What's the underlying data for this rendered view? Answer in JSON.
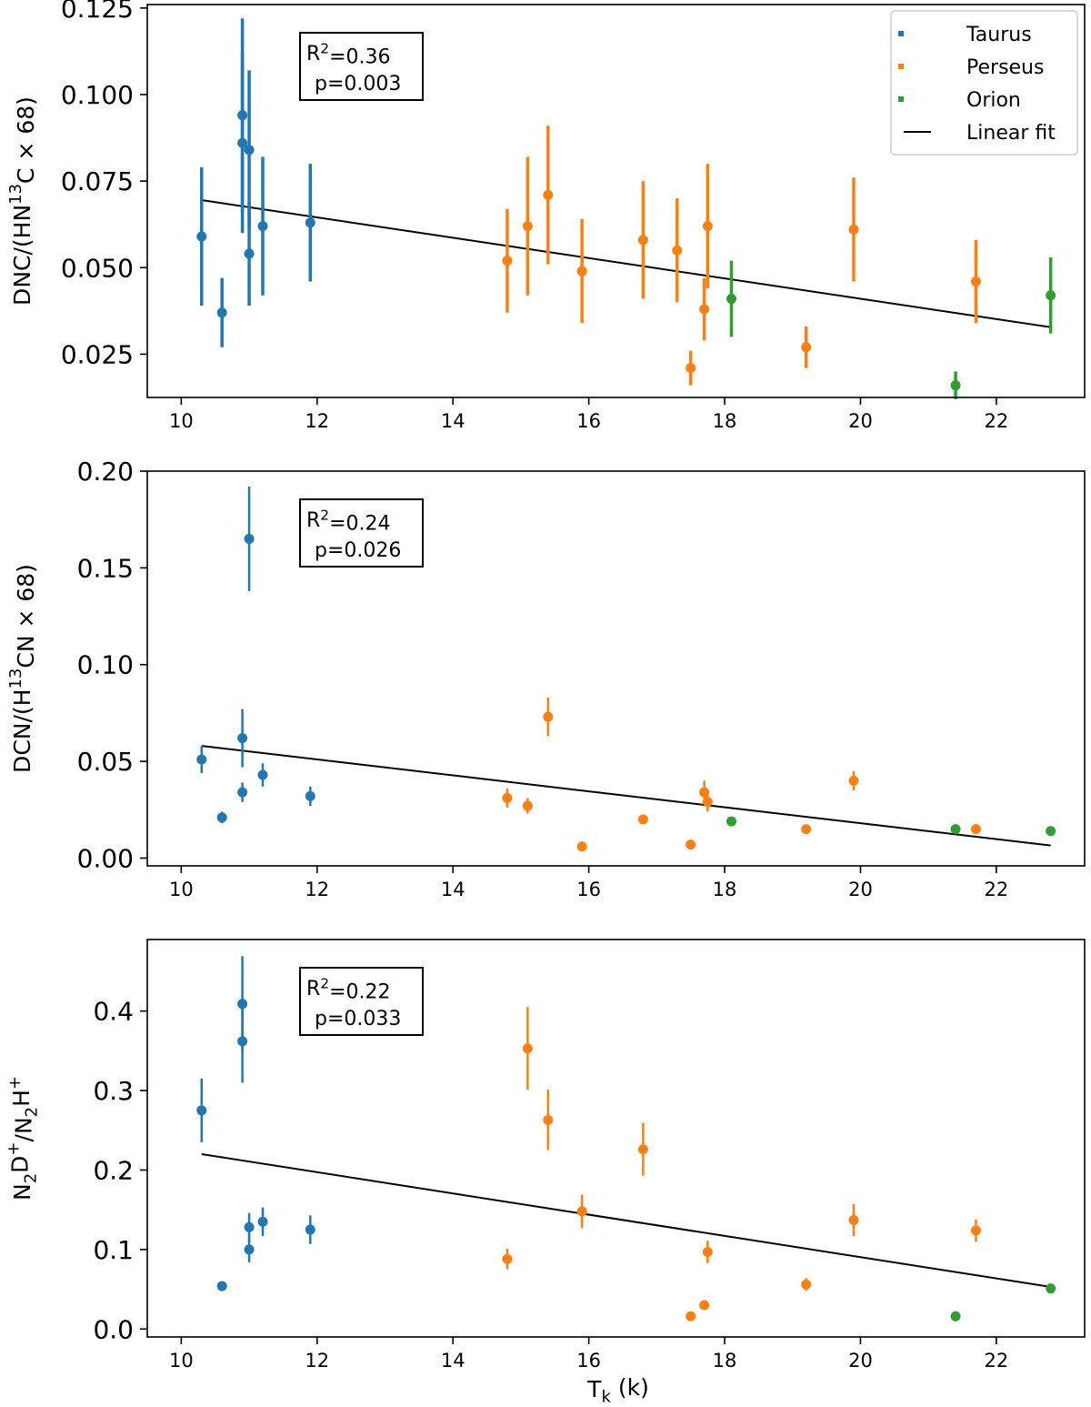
{
  "colors": {
    "Taurus": "#1f77b4",
    "Perseus": "#ff7f0e",
    "Orion": "#2ca02c",
    "fit": "#000000"
  },
  "legend": {
    "placement": "top-right",
    "entries": [
      "Taurus",
      "Perseus",
      "Orion",
      "Linear fit"
    ]
  },
  "xlabel_main": "T",
  "xlabel_sub": "k",
  "xlabel_tail": " (k)",
  "chart_data": [
    {
      "type": "scatter",
      "ylabel_parts": [
        [
          "DNC/(HN",
          "n"
        ],
        [
          "13",
          "sup"
        ],
        [
          "C × 68)",
          "n"
        ]
      ],
      "xlim": [
        9.5,
        23.3
      ],
      "ylim": [
        0.0125,
        0.126
      ],
      "xticks": [
        10,
        12,
        14,
        16,
        18,
        20,
        22
      ],
      "yticks": [
        0.025,
        0.05,
        0.075,
        0.1,
        0.125
      ],
      "ytick_labels": [
        "0.025",
        "0.050",
        "0.075",
        "0.100",
        "0.125"
      ],
      "annotation": {
        "r2_label": "R",
        "r2_sup": "2",
        "r2_value": "=0.36",
        "p": "p=0.003"
      },
      "fit": {
        "x": [
          10.3,
          22.8
        ],
        "y": [
          0.0695,
          0.0328
        ]
      },
      "series": [
        {
          "name": "Taurus",
          "points": [
            {
              "x": 10.3,
              "y": 0.059,
              "err": 0.02
            },
            {
              "x": 10.6,
              "y": 0.037,
              "err": 0.01
            },
            {
              "x": 10.9,
              "y": 0.094,
              "err": 0.028
            },
            {
              "x": 10.9,
              "y": 0.086,
              "err": 0.026
            },
            {
              "x": 11.0,
              "y": 0.084,
              "err": 0.023
            },
            {
              "x": 11.0,
              "y": 0.054,
              "err": 0.015
            },
            {
              "x": 11.2,
              "y": 0.062,
              "err": 0.02
            },
            {
              "x": 11.9,
              "y": 0.063,
              "err": 0.017
            }
          ]
        },
        {
          "name": "Perseus",
          "points": [
            {
              "x": 14.8,
              "y": 0.052,
              "err": 0.015
            },
            {
              "x": 15.1,
              "y": 0.062,
              "err": 0.02
            },
            {
              "x": 15.4,
              "y": 0.071,
              "err": 0.02
            },
            {
              "x": 15.9,
              "y": 0.049,
              "err": 0.015
            },
            {
              "x": 16.8,
              "y": 0.058,
              "err": 0.017
            },
            {
              "x": 17.3,
              "y": 0.055,
              "err": 0.015
            },
            {
              "x": 17.5,
              "y": 0.021,
              "err": 0.005
            },
            {
              "x": 17.7,
              "y": 0.038,
              "err": 0.009
            },
            {
              "x": 17.75,
              "y": 0.062,
              "err": 0.018
            },
            {
              "x": 19.2,
              "y": 0.027,
              "err": 0.006
            },
            {
              "x": 19.9,
              "y": 0.061,
              "err": 0.015
            },
            {
              "x": 21.7,
              "y": 0.046,
              "err": 0.012
            }
          ]
        },
        {
          "name": "Orion",
          "points": [
            {
              "x": 18.1,
              "y": 0.041,
              "err": 0.011
            },
            {
              "x": 21.4,
              "y": 0.016,
              "err": 0.004
            },
            {
              "x": 22.8,
              "y": 0.042,
              "err": 0.011
            }
          ]
        }
      ]
    },
    {
      "type": "scatter",
      "ylabel_parts": [
        [
          "DCN/(H",
          "n"
        ],
        [
          "13",
          "sup"
        ],
        [
          "CN × 68)",
          "n"
        ]
      ],
      "xlim": [
        9.5,
        23.3
      ],
      "ylim": [
        -0.004,
        0.2
      ],
      "xticks": [
        10,
        12,
        14,
        16,
        18,
        20,
        22
      ],
      "yticks": [
        0.0,
        0.05,
        0.1,
        0.15,
        0.2
      ],
      "ytick_labels": [
        "0.00",
        "0.05",
        "0.10",
        "0.15",
        "0.20"
      ],
      "annotation": {
        "r2_label": "R",
        "r2_sup": "2",
        "r2_value": "=0.24",
        "p": "p=0.026"
      },
      "fit": {
        "x": [
          10.3,
          22.8
        ],
        "y": [
          0.058,
          0.0065
        ]
      },
      "series": [
        {
          "name": "Taurus",
          "points": [
            {
              "x": 10.3,
              "y": 0.051,
              "err": 0.007
            },
            {
              "x": 10.6,
              "y": 0.021,
              "err": 0.003
            },
            {
              "x": 10.9,
              "y": 0.062,
              "err": 0.015
            },
            {
              "x": 10.9,
              "y": 0.034,
              "err": 0.005
            },
            {
              "x": 11.0,
              "y": 0.165,
              "err": 0.027
            },
            {
              "x": 11.2,
              "y": 0.043,
              "err": 0.006
            },
            {
              "x": 11.9,
              "y": 0.032,
              "err": 0.005
            }
          ]
        },
        {
          "name": "Perseus",
          "points": [
            {
              "x": 14.8,
              "y": 0.031,
              "err": 0.005
            },
            {
              "x": 15.1,
              "y": 0.027,
              "err": 0.004
            },
            {
              "x": 15.4,
              "y": 0.073,
              "err": 0.01
            },
            {
              "x": 15.9,
              "y": 0.006,
              "err": 0.001
            },
            {
              "x": 16.8,
              "y": 0.02,
              "err": 0.002
            },
            {
              "x": 17.5,
              "y": 0.007,
              "err": 0.001
            },
            {
              "x": 17.7,
              "y": 0.034,
              "err": 0.006
            },
            {
              "x": 17.75,
              "y": 0.029,
              "err": 0.005
            },
            {
              "x": 19.2,
              "y": 0.015,
              "err": 0.002
            },
            {
              "x": 19.9,
              "y": 0.04,
              "err": 0.005
            },
            {
              "x": 21.7,
              "y": 0.015,
              "err": 0.002
            }
          ]
        },
        {
          "name": "Orion",
          "points": [
            {
              "x": 18.1,
              "y": 0.019,
              "err": 0.002
            },
            {
              "x": 21.4,
              "y": 0.015,
              "err": 0.002
            },
            {
              "x": 22.8,
              "y": 0.014,
              "err": 0.002
            }
          ]
        }
      ]
    },
    {
      "type": "scatter",
      "ylabel_parts": [
        [
          "N",
          "n"
        ],
        [
          "2",
          "sub"
        ],
        [
          "D",
          "n"
        ],
        [
          "+",
          "sup"
        ],
        [
          "/N",
          "n"
        ],
        [
          "2",
          "sub"
        ],
        [
          "H",
          "n"
        ],
        [
          "+",
          "sup"
        ]
      ],
      "xlim": [
        9.5,
        23.3
      ],
      "ylim": [
        -0.01,
        0.49
      ],
      "xticks": [
        10,
        12,
        14,
        16,
        18,
        20,
        22
      ],
      "yticks": [
        0.0,
        0.1,
        0.2,
        0.3,
        0.4
      ],
      "ytick_labels": [
        "0.0",
        "0.1",
        "0.2",
        "0.3",
        "0.4"
      ],
      "annotation": {
        "r2_label": "R",
        "r2_sup": "2",
        "r2_value": "=0.22",
        "p": "p=0.033"
      },
      "fit": {
        "x": [
          10.3,
          22.8
        ],
        "y": [
          0.22,
          0.053
        ]
      },
      "series": [
        {
          "name": "Taurus",
          "points": [
            {
              "x": 10.3,
              "y": 0.275,
              "err": 0.04
            },
            {
              "x": 10.6,
              "y": 0.054,
              "err": 0.006
            },
            {
              "x": 10.9,
              "y": 0.409,
              "err": 0.06
            },
            {
              "x": 10.9,
              "y": 0.362,
              "err": 0.052
            },
            {
              "x": 11.0,
              "y": 0.128,
              "err": 0.018
            },
            {
              "x": 11.0,
              "y": 0.1,
              "err": 0.016
            },
            {
              "x": 11.2,
              "y": 0.135,
              "err": 0.018
            },
            {
              "x": 11.9,
              "y": 0.125,
              "err": 0.018
            }
          ]
        },
        {
          "name": "Perseus",
          "points": [
            {
              "x": 14.8,
              "y": 0.088,
              "err": 0.013
            },
            {
              "x": 15.1,
              "y": 0.353,
              "err": 0.052
            },
            {
              "x": 15.4,
              "y": 0.263,
              "err": 0.038
            },
            {
              "x": 15.9,
              "y": 0.148,
              "err": 0.021
            },
            {
              "x": 16.8,
              "y": 0.226,
              "err": 0.033
            },
            {
              "x": 17.5,
              "y": 0.016,
              "err": 0.002
            },
            {
              "x": 17.7,
              "y": 0.03,
              "err": 0.004
            },
            {
              "x": 17.75,
              "y": 0.097,
              "err": 0.014
            },
            {
              "x": 19.2,
              "y": 0.056,
              "err": 0.008
            },
            {
              "x": 19.9,
              "y": 0.137,
              "err": 0.02
            },
            {
              "x": 21.7,
              "y": 0.124,
              "err": 0.014
            }
          ]
        },
        {
          "name": "Orion",
          "points": [
            {
              "x": 21.4,
              "y": 0.016,
              "err": 0.002
            },
            {
              "x": 22.8,
              "y": 0.051,
              "err": 0.006
            }
          ]
        }
      ]
    }
  ]
}
